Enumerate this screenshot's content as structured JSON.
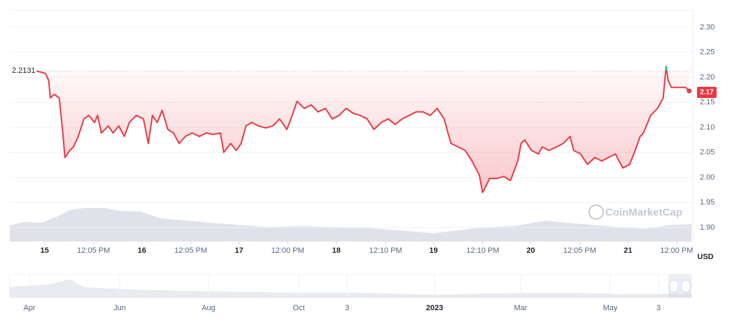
{
  "chart_data": {
    "type": "line",
    "currency": "USD",
    "watermark": "CoinMarketCap",
    "baseline": 2.2131,
    "current_price": 2.17,
    "color_up": "#16c784",
    "color_down": "#ea3943",
    "grid": true,
    "xlim": [
      -8.6,
      160
    ],
    "xticks": [
      {
        "value": 0,
        "label": "15"
      },
      {
        "value": 12.08,
        "label": "12:05 PM"
      },
      {
        "value": 24,
        "label": "16"
      },
      {
        "value": 36.08,
        "label": "12:05 PM"
      },
      {
        "value": 48,
        "label": "17"
      },
      {
        "value": 60,
        "label": "12:00 PM"
      },
      {
        "value": 72,
        "label": "18"
      },
      {
        "value": 84.17,
        "label": "12:10 PM"
      },
      {
        "value": 96,
        "label": "19"
      },
      {
        "value": 108.17,
        "label": "12:10 PM"
      },
      {
        "value": 120,
        "label": "20"
      },
      {
        "value": 132.08,
        "label": "12:05 PM"
      },
      {
        "value": 144,
        "label": "21"
      },
      {
        "value": 156,
        "label": "12:00 PM"
      }
    ],
    "ylim": [
      1.872,
      2.335
    ],
    "yticks": [
      {
        "value": 2.3,
        "label": "2.30"
      },
      {
        "value": 2.25,
        "label": "2.25"
      },
      {
        "value": 2.2,
        "label": "2.20"
      },
      {
        "value": 2.15,
        "label": "2.15"
      },
      {
        "value": 2.1,
        "label": "2.10"
      },
      {
        "value": 2.05,
        "label": "2.05"
      },
      {
        "value": 2.0,
        "label": "2.00"
      },
      {
        "value": 1.95,
        "label": "1.95"
      },
      {
        "value": 1.9,
        "label": "1.90"
      }
    ],
    "x": [
      -2.1,
      0.2,
      1.0,
      1.4,
      2.4,
      3.6,
      4.5,
      5.0,
      6.2,
      7.1,
      8.3,
      9.7,
      10.9,
      12.3,
      13.1,
      14.0,
      15.7,
      16.9,
      18.3,
      19.7,
      20.9,
      22.6,
      24.4,
      25.6,
      26.6,
      27.8,
      29.0,
      30.4,
      31.8,
      33.2,
      34.7,
      36.4,
      38.2,
      39.9,
      41.6,
      43.4,
      44.2,
      45.9,
      47.3,
      48.5,
      49.7,
      51.1,
      52.8,
      54.6,
      56.3,
      58.0,
      59.8,
      61.1,
      62.3,
      64.1,
      65.8,
      67.5,
      69.3,
      71.0,
      72.7,
      74.4,
      76.2,
      77.9,
      79.6,
      81.3,
      83.1,
      84.8,
      86.5,
      88.3,
      90.0,
      91.7,
      93.4,
      95.2,
      96.9,
      98.6,
      100.3,
      102.1,
      103.8,
      105.5,
      107.3,
      108.1,
      109.0,
      109.8,
      111.6,
      113.3,
      115.0,
      116.8,
      117.6,
      118.5,
      120.2,
      121.9,
      122.8,
      124.5,
      126.3,
      128.0,
      129.7,
      130.6,
      132.3,
      134.0,
      135.8,
      137.5,
      139.2,
      140.9,
      142.7,
      144.4,
      146.1,
      147.0,
      147.8,
      149.6,
      151.3,
      152.7,
      153.4,
      153.9,
      154.7,
      156.5,
      158.2,
      159.1
    ],
    "values": [
      2.213,
      2.208,
      2.194,
      2.159,
      2.166,
      2.159,
      2.089,
      2.04,
      2.054,
      2.061,
      2.082,
      2.117,
      2.124,
      2.11,
      2.124,
      2.089,
      2.103,
      2.089,
      2.103,
      2.082,
      2.11,
      2.124,
      2.117,
      2.068,
      2.124,
      2.11,
      2.134,
      2.096,
      2.089,
      2.068,
      2.082,
      2.089,
      2.082,
      2.089,
      2.086,
      2.089,
      2.05,
      2.068,
      2.054,
      2.068,
      2.103,
      2.11,
      2.103,
      2.099,
      2.103,
      2.117,
      2.096,
      2.124,
      2.152,
      2.138,
      2.145,
      2.131,
      2.138,
      2.117,
      2.124,
      2.138,
      2.128,
      2.124,
      2.117,
      2.096,
      2.11,
      2.117,
      2.106,
      2.117,
      2.124,
      2.131,
      2.131,
      2.124,
      2.138,
      2.117,
      2.068,
      2.061,
      2.054,
      2.033,
      2.005,
      1.97,
      1.984,
      1.998,
      1.998,
      2.002,
      1.994,
      2.033,
      2.068,
      2.075,
      2.054,
      2.047,
      2.061,
      2.054,
      2.061,
      2.068,
      2.082,
      2.054,
      2.047,
      2.026,
      2.04,
      2.033,
      2.04,
      2.047,
      2.019,
      2.026,
      2.061,
      2.082,
      2.089,
      2.124,
      2.138,
      2.159,
      2.222,
      2.194,
      2.18,
      2.18,
      2.18,
      2.173
    ],
    "navigator_labels": [
      "Apr",
      "Jun",
      "Aug",
      "Oct",
      "3",
      "2023",
      "Mar",
      "May",
      "3"
    ]
  }
}
